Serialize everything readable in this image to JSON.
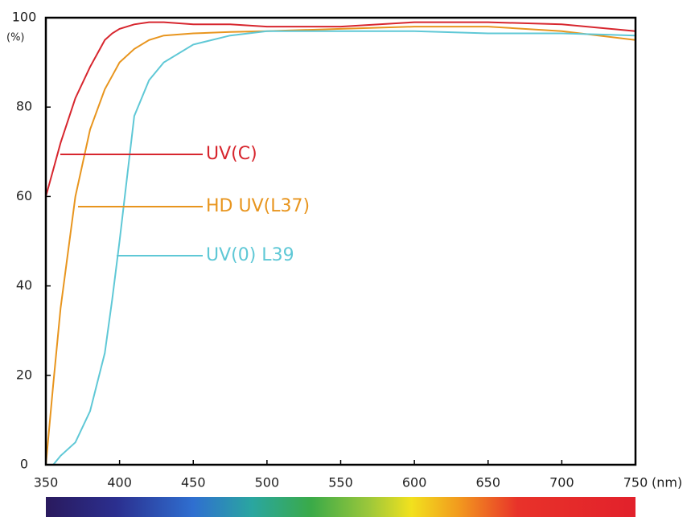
{
  "chart_data": {
    "type": "line",
    "y_label": "(%)",
    "x_label": "(nm)",
    "x": [
      350,
      355,
      360,
      370,
      380,
      390,
      395,
      400,
      410,
      420,
      430,
      450,
      475,
      500,
      550,
      600,
      650,
      700,
      750
    ],
    "series": [
      {
        "name": "UV(C)",
        "color": "#d7262e",
        "values": [
          60,
          66,
          72,
          82,
          89,
          95,
          96.5,
          97.5,
          98.5,
          99,
          99,
          98.5,
          98.5,
          98,
          98,
          99,
          99,
          98.5,
          97
        ]
      },
      {
        "name": "HD UV(L37)",
        "color": "#e8951e",
        "values": [
          0,
          18,
          35,
          60,
          75,
          84,
          87,
          90,
          93,
          95,
          96,
          96.5,
          96.8,
          97,
          97.5,
          98,
          98,
          97,
          95
        ]
      },
      {
        "name": "UV(0) L39",
        "color": "#5fc8d6",
        "values": [
          null,
          0,
          2,
          5,
          12,
          25,
          37,
          50,
          78,
          86,
          90,
          94,
          96,
          97,
          97,
          97,
          96.5,
          96.5,
          96
        ]
      }
    ],
    "xlim": [
      350,
      750
    ],
    "ylim": [
      0,
      100
    ],
    "xticks": [
      350,
      400,
      450,
      500,
      550,
      600,
      650,
      700,
      750
    ],
    "yticks": [
      0,
      20,
      40,
      60,
      80,
      100
    ]
  }
}
